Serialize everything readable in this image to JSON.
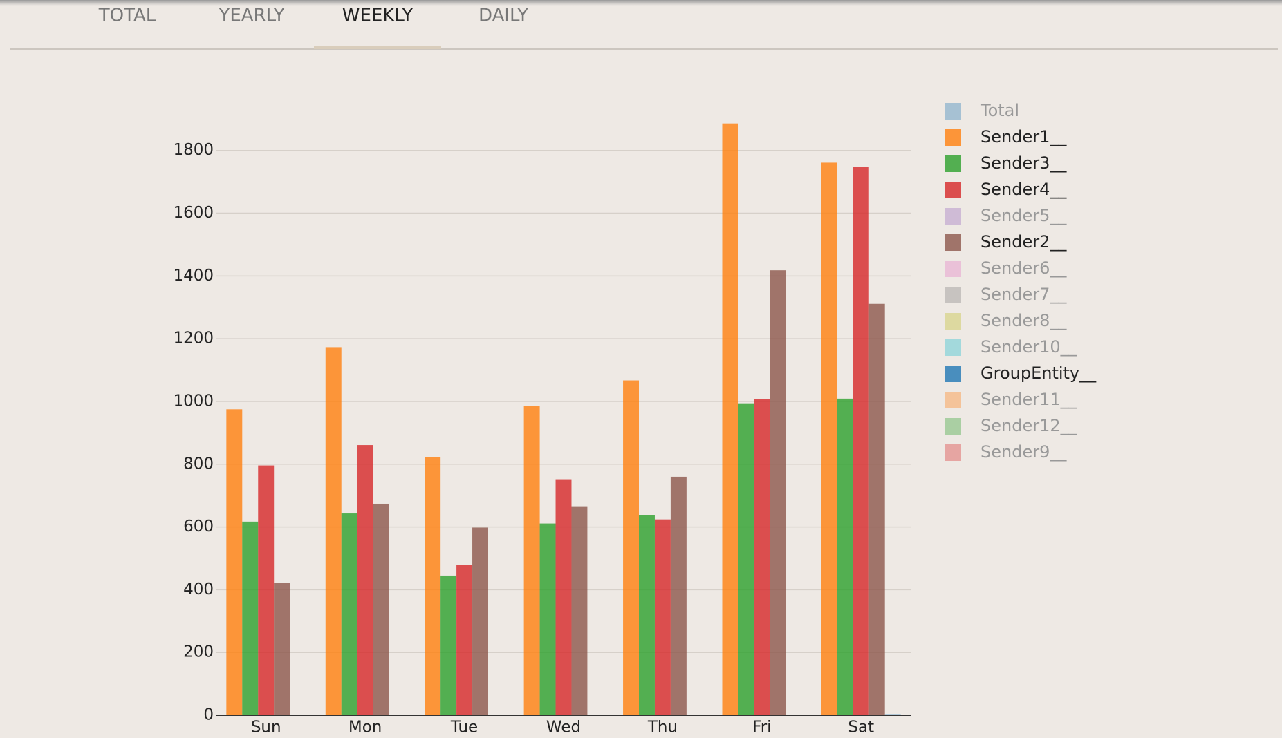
{
  "tabs": [
    "TOTAL",
    "YEARLY",
    "WEEKLY",
    "DAILY"
  ],
  "active_tab": 2,
  "chart_data": {
    "type": "bar",
    "categories": [
      "Sun",
      "Mon",
      "Tue",
      "Wed",
      "Thu",
      "Fri",
      "Sat"
    ],
    "ylim": [
      0,
      1980
    ],
    "yticks": [
      0,
      200,
      400,
      600,
      800,
      1000,
      1200,
      1400,
      1600,
      1800
    ],
    "grid": true,
    "legend": "right",
    "series": [
      {
        "name": "Total",
        "color": "#1f77b4",
        "visible": false
      },
      {
        "name": "Sender1__",
        "color": "#ff7f0e",
        "values": [
          975,
          1173,
          822,
          986,
          1067,
          1886,
          1761
        ]
      },
      {
        "name": "Sender3__",
        "color": "#2ca02c",
        "values": [
          617,
          643,
          445,
          611,
          637,
          994,
          1009
        ]
      },
      {
        "name": "Sender4__",
        "color": "#d62728",
        "values": [
          796,
          861,
          479,
          752,
          624,
          1007,
          1748
        ]
      },
      {
        "name": "Sender5__",
        "color": "#9467bd",
        "visible": false
      },
      {
        "name": "Sender2__",
        "color": "#8c564b",
        "values": [
          421,
          674,
          598,
          666,
          760,
          1418,
          1311
        ]
      },
      {
        "name": "Sender6__",
        "color": "#e377c2",
        "visible": false
      },
      {
        "name": "Sender7__",
        "color": "#7f7f7f",
        "visible": false
      },
      {
        "name": "Sender8__",
        "color": "#bcbd22",
        "visible": false
      },
      {
        "name": "Sender10__",
        "color": "#17becf",
        "visible": false
      },
      {
        "name": "GroupEntity__",
        "color": "#1f77b4",
        "values": [
          0,
          0,
          0,
          0,
          0,
          0,
          3
        ]
      },
      {
        "name": "Sender11__",
        "color": "#ff7f0e",
        "visible": false
      },
      {
        "name": "Sender12__",
        "color": "#2ca02c",
        "visible": false
      },
      {
        "name": "Sender9__",
        "color": "#d62728",
        "visible": false
      }
    ]
  }
}
